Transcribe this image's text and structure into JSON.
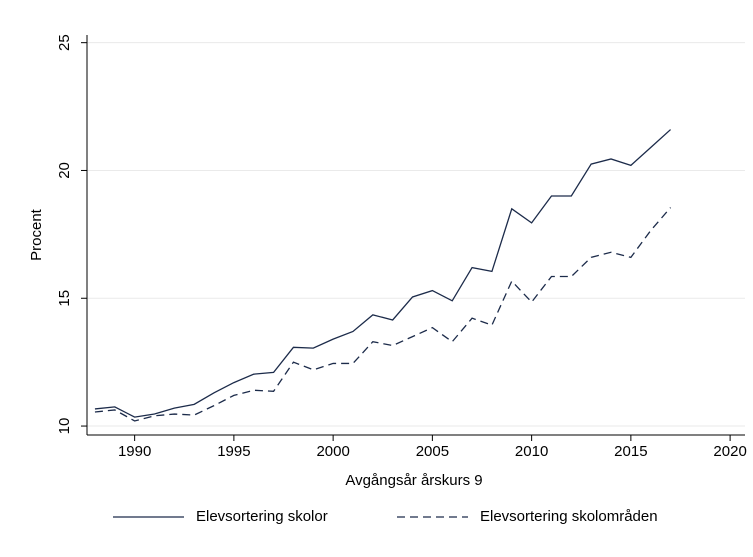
{
  "chart_data": {
    "type": "line",
    "x_label": "Avgångsår årskurs 9",
    "y_label": "Procent",
    "x": [
      1988,
      1989,
      1990,
      1991,
      1992,
      1993,
      1994,
      1995,
      1996,
      1997,
      1998,
      1999,
      2000,
      2001,
      2002,
      2003,
      2004,
      2005,
      2006,
      2007,
      2008,
      2009,
      2010,
      2011,
      2012,
      2013,
      2014,
      2015,
      2016,
      2017
    ],
    "series": [
      {
        "name": "Elevsortering skolor",
        "color": "#1c2b4a",
        "dash": "solid",
        "values": [
          10.67,
          10.75,
          10.35,
          10.47,
          10.7,
          10.85,
          11.3,
          11.7,
          12.03,
          12.1,
          13.08,
          13.05,
          13.4,
          13.7,
          14.35,
          14.15,
          15.05,
          15.3,
          14.9,
          16.2,
          16.05,
          18.5,
          17.95,
          19.0,
          19.0,
          20.25,
          20.45,
          20.2,
          20.9,
          21.6
        ]
      },
      {
        "name": "Elevsortering skolområden",
        "color": "#1c2b4a",
        "dash": "dashed",
        "values": [
          10.55,
          10.63,
          10.2,
          10.4,
          10.47,
          10.43,
          10.8,
          11.2,
          11.4,
          11.36,
          12.5,
          12.2,
          12.45,
          12.45,
          13.3,
          13.15,
          13.5,
          13.85,
          13.3,
          14.22,
          13.95,
          15.67,
          14.85,
          15.85,
          15.85,
          16.6,
          16.8,
          16.6,
          17.65,
          18.55
        ]
      }
    ],
    "xlim": [
      1987.6,
      2020.75
    ],
    "xticks": [
      1990,
      1995,
      2000,
      2005,
      2010,
      2015,
      2020
    ],
    "ylim": [
      9.65,
      25.3
    ],
    "yticks": [
      10,
      15,
      20,
      25
    ],
    "grid": true,
    "legend": "bottom"
  }
}
